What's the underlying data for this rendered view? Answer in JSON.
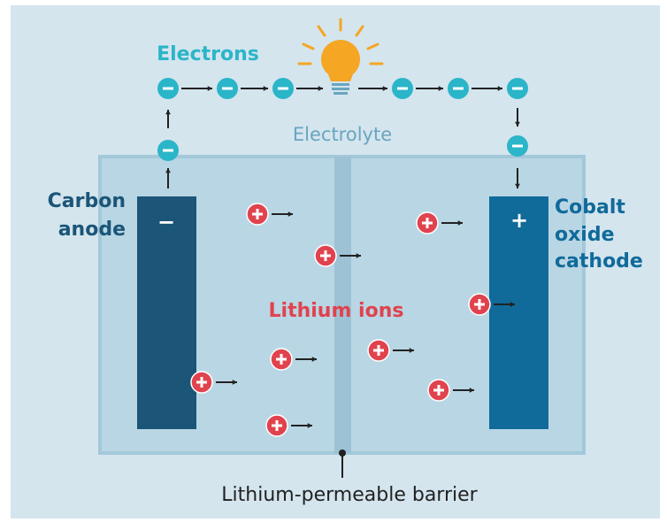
{
  "labels": {
    "electrons": "Electrons",
    "electrolyte": "Electrolyte",
    "anode": [
      "Carbon",
      "anode"
    ],
    "cathode": [
      "Cobalt",
      "oxide",
      "cathode"
    ],
    "anode_sign": "−",
    "cathode_sign": "+",
    "lithium_ions": "Lithium ions",
    "barrier": "Lithium-permeable barrier"
  }
}
